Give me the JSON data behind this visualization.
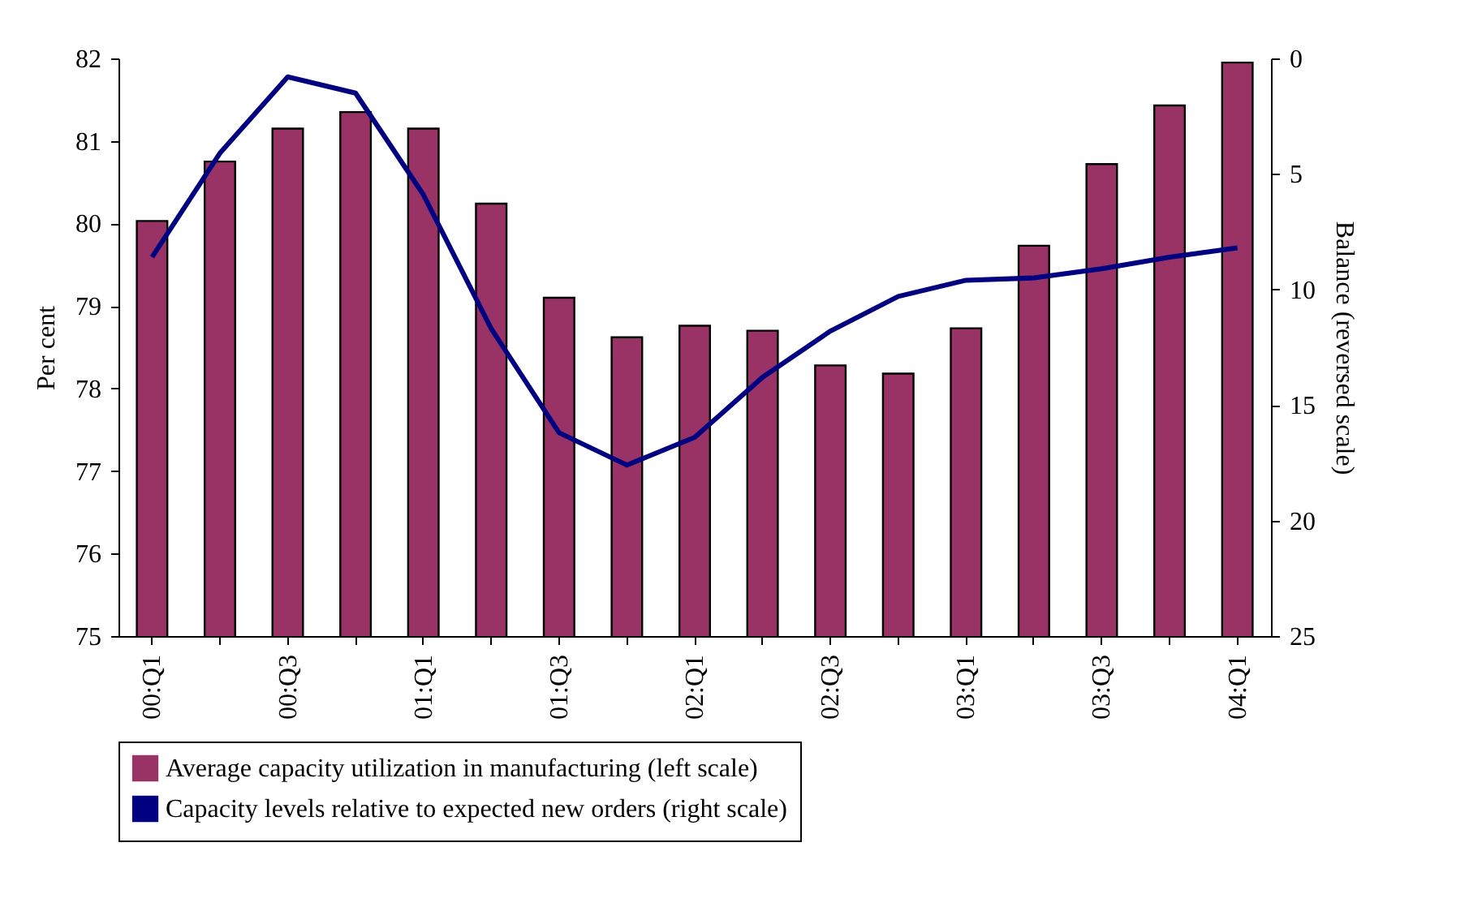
{
  "chart_data": {
    "type": "bar",
    "categories": [
      "00:Q1",
      null,
      "00:Q3",
      null,
      "01:Q1",
      null,
      "01:Q3",
      null,
      "02:Q1",
      null,
      "02:Q3",
      null,
      "03:Q1",
      null,
      "03:Q3",
      null,
      "04:Q1"
    ],
    "ylabel": "Per cent",
    "y2label": "Balance (reversed scale)",
    "ylim": [
      75,
      82
    ],
    "yticks": [
      75,
      76,
      77,
      78,
      79,
      80,
      81,
      82
    ],
    "y2lim": [
      25,
      0
    ],
    "y2ticks": [
      0,
      5,
      10,
      15,
      20,
      25
    ],
    "legend": "bottom",
    "grid": false,
    "series": [
      {
        "name": "Average capacity utilization in manufacturing (left scale)",
        "color": "#993366",
        "values": [
          80.03,
          80.75,
          81.15,
          81.35,
          81.15,
          80.24,
          79.1,
          78.62,
          78.76,
          78.7,
          78.28,
          78.18,
          78.73,
          79.73,
          80.72,
          81.43,
          81.95
        ]
      },
      {
        "name": "Capacity levels relative to expected new orders (right scale)",
        "type": "line",
        "axis": "y2",
        "color": "#000080",
        "values": [
          8.6,
          4.1,
          0.8,
          1.5,
          5.9,
          11.7,
          16.2,
          17.6,
          16.4,
          13.8,
          11.8,
          10.3,
          9.6,
          9.5,
          9.1,
          8.6,
          8.2
        ]
      }
    ]
  }
}
